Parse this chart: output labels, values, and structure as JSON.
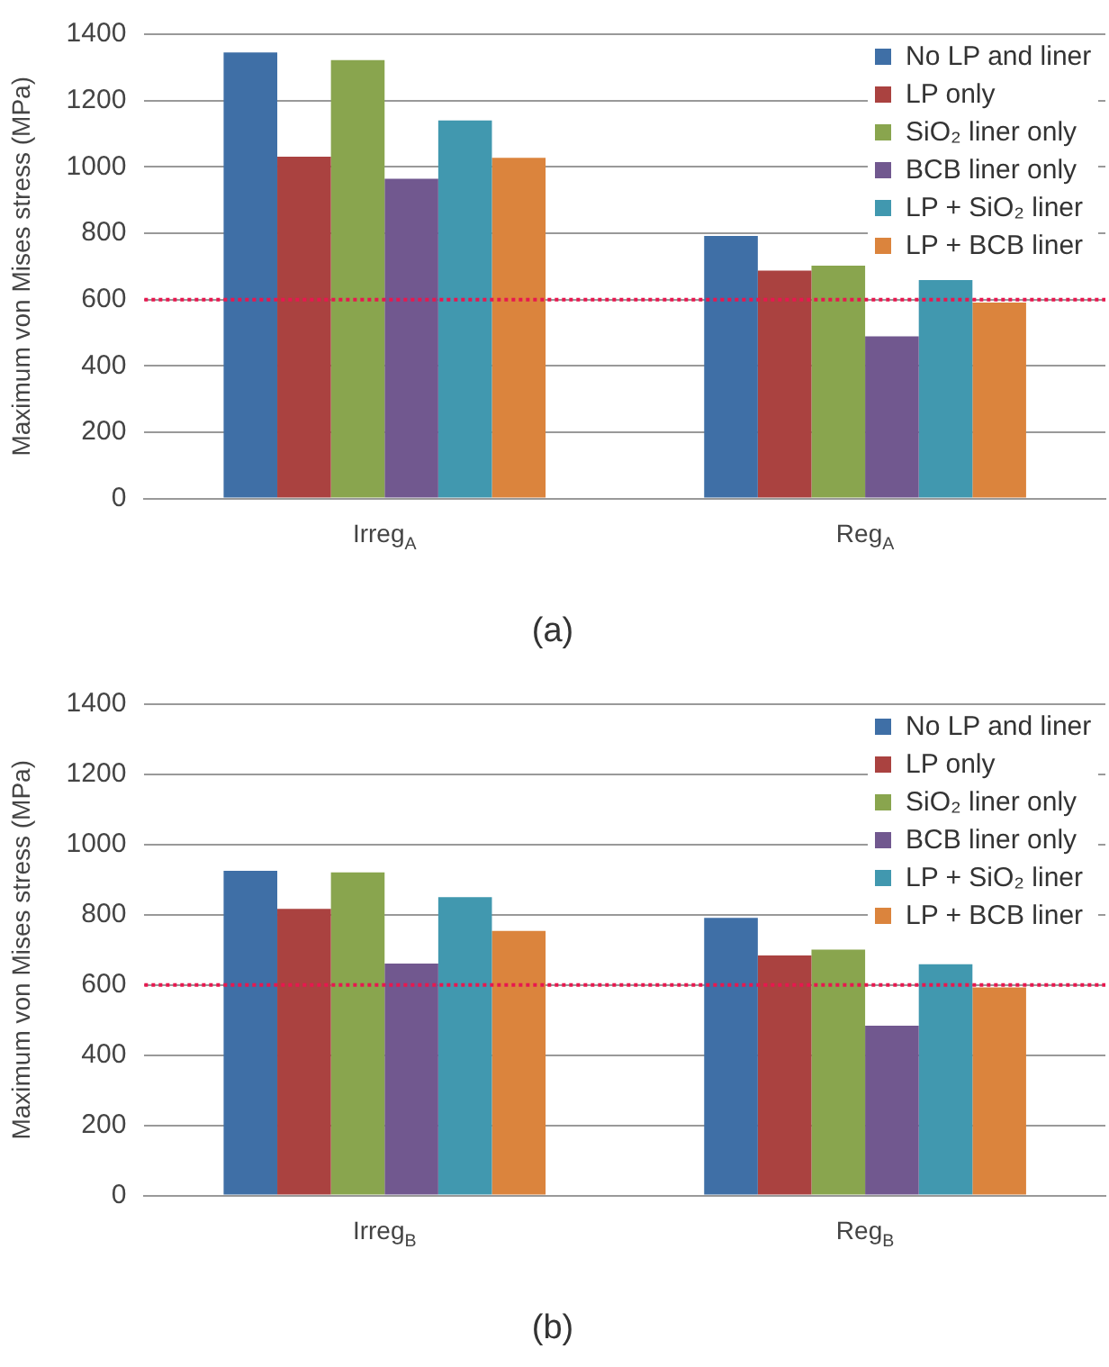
{
  "chart_data": [
    {
      "type": "bar",
      "title": "(a)",
      "ylabel": "Maximum von Mises stress (MPa)",
      "categories": [
        "Irreg$_{A}$",
        "Reg$_{A}$"
      ],
      "series": [
        {
          "name": "No LP and liner",
          "color": "#3f6fa6",
          "values": [
            1345,
            792
          ]
        },
        {
          "name": "LP only",
          "color": "#aa4240",
          "values": [
            1031,
            687
          ]
        },
        {
          "name": "SiO₂ liner only",
          "color": "#89a54e",
          "values": [
            1322,
            702
          ]
        },
        {
          "name": "BCB liner only",
          "color": "#71588f",
          "values": [
            964,
            489
          ]
        },
        {
          "name": "LP + SiO₂ liner",
          "color": "#4198af",
          "values": [
            1140,
            659
          ]
        },
        {
          "name": "LP + BCB liner",
          "color": "#db843d",
          "values": [
            1027,
            591
          ]
        }
      ],
      "ylim": [
        0,
        1400
      ],
      "yticks": [
        0,
        200,
        400,
        600,
        800,
        1000,
        1200,
        1400
      ],
      "grid": "y",
      "legend": "top right",
      "ref_lines": [
        {
          "axis": "y",
          "value": 600,
          "color": "#e8174f",
          "line_style": "dotted"
        }
      ]
    },
    {
      "type": "bar",
      "title": "(b)",
      "ylabel": "Maximum von Mises stress (MPa)",
      "categories": [
        "Irreg$_{B}$",
        "Reg$_{B}$"
      ],
      "series": [
        {
          "name": "No LP and liner",
          "color": "#3f6fa6",
          "values": [
            925,
            791
          ]
        },
        {
          "name": "LP only",
          "color": "#aa4240",
          "values": [
            817,
            684
          ]
        },
        {
          "name": "SiO₂ liner only",
          "color": "#89a54e",
          "values": [
            921,
            701
          ]
        },
        {
          "name": "BCB liner only",
          "color": "#71588f",
          "values": [
            661,
            484
          ]
        },
        {
          "name": "LP + SiO₂ liner",
          "color": "#4198af",
          "values": [
            850,
            659
          ]
        },
        {
          "name": "LP + BCB liner",
          "color": "#db843d",
          "values": [
            754,
            593
          ]
        }
      ],
      "ylim": [
        0,
        1400
      ],
      "yticks": [
        0,
        200,
        400,
        600,
        800,
        1000,
        1200,
        1400
      ],
      "grid": "y",
      "legend": "top right",
      "ref_lines": [
        {
          "axis": "y",
          "value": 600,
          "color": "#e8174f",
          "line_style": "dotted"
        }
      ]
    }
  ]
}
